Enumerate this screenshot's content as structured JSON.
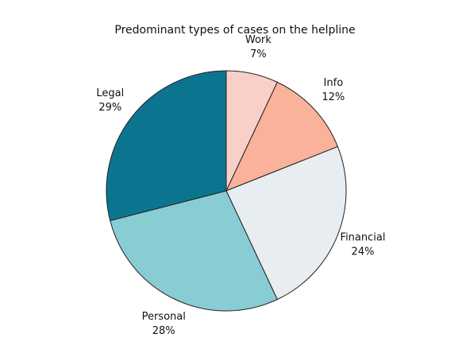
{
  "chart_data": {
    "type": "pie",
    "title": "Predominant types of cases on the helpline",
    "categories": [
      "Work",
      "Info",
      "Financial",
      "Personal",
      "Legal"
    ],
    "values": [
      7,
      12,
      24,
      28,
      29
    ],
    "value_labels": [
      "7%",
      "12%",
      "24%",
      "28%",
      "29%"
    ],
    "colors": [
      "#f9d0c8",
      "#fbb29a",
      "#e8edf1",
      "#88ccd4",
      "#0b7590"
    ]
  }
}
